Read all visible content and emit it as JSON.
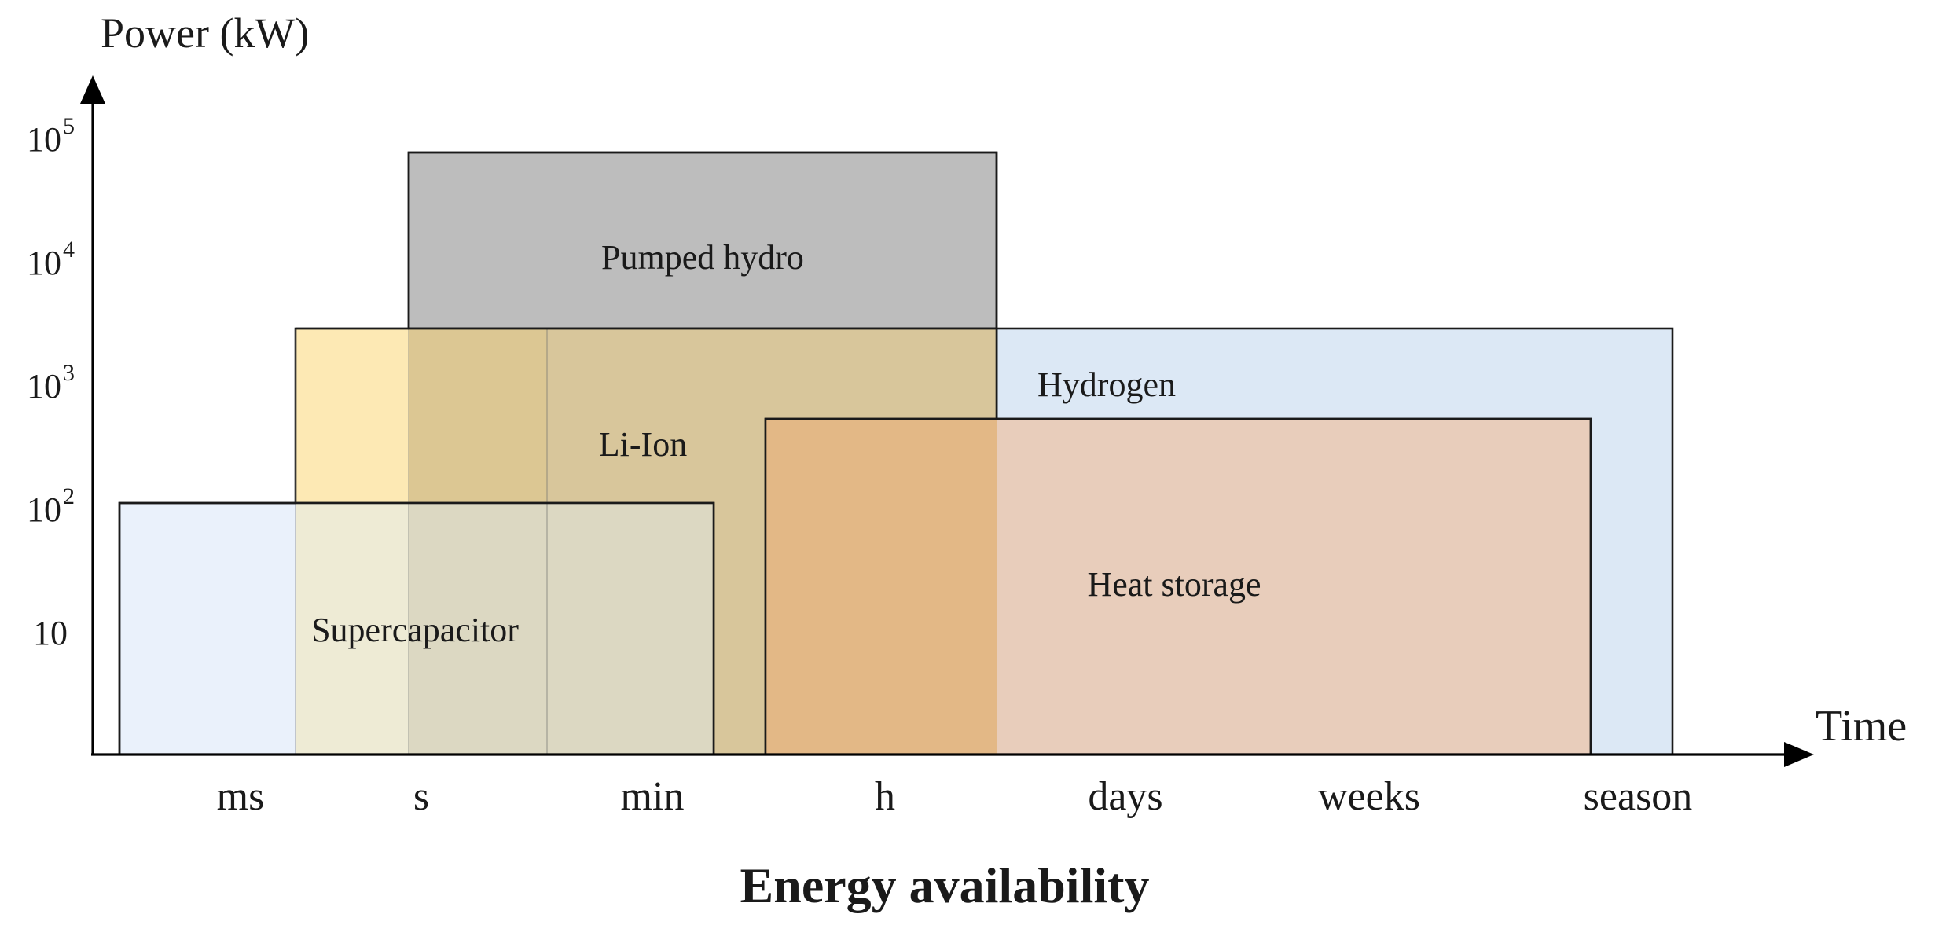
{
  "chart_data": {
    "type": "range_box",
    "title": "",
    "xlabel": "Time",
    "ylabel": "Power (kW)",
    "bottom_label": "Energy availability",
    "x_ticks": [
      "ms",
      "s",
      "min",
      "h",
      "days",
      "weeks",
      "season"
    ],
    "y_ticks": [
      {
        "value": 10,
        "base": "10",
        "exp": ""
      },
      {
        "value": 100,
        "base": "10",
        "exp": "2"
      },
      {
        "value": 1000,
        "base": "10",
        "exp": "3"
      },
      {
        "value": 10000,
        "base": "10",
        "exp": "4"
      },
      {
        "value": 100000,
        "base": "10",
        "exp": "5"
      }
    ],
    "y_scale": "log",
    "grid": false,
    "technologies": [
      {
        "name": "Hydrogen",
        "time_range": [
          "h",
          "season"
        ],
        "power_range_kW": [
          null,
          1000
        ],
        "color": "#dce8f5"
      },
      {
        "name": "Pumped hydro",
        "time_range": [
          "s",
          "h"
        ],
        "power_range_kW": [
          1000,
          100000
        ],
        "color": "#bdbdbd"
      },
      {
        "name": "Li-Ion",
        "time_range": [
          "ms",
          "h"
        ],
        "power_range_kW": [
          null,
          1000
        ],
        "color": "#fde9b4"
      },
      {
        "name": "Heat storage",
        "time_range": [
          "min",
          "season"
        ],
        "power_range_kW": [
          null,
          500
        ],
        "color": "#e8cdbb"
      },
      {
        "name": "Supercapacitor",
        "time_range": [
          "ms",
          "min"
        ],
        "power_range_kW": [
          null,
          100
        ],
        "color": "#eaf1fb"
      }
    ],
    "overlap_colors": {
      "liion_pumped": "#dcc793",
      "liion_pumped_shade": "#d8c69b",
      "liion_supercap": "#eeebd5",
      "liion_pumped_supercap": "#dcd8c2",
      "liion_heat": "#e3b886"
    }
  }
}
